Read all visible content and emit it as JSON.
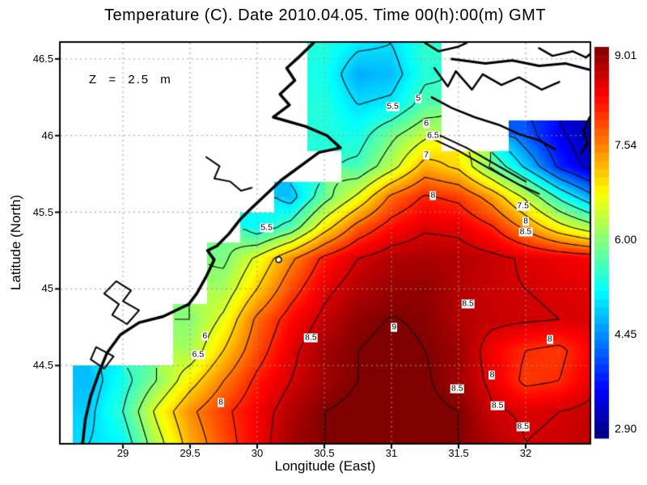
{
  "chart_data": {
    "type": "heatmap",
    "title": "Temperature (C). Date 2010.04.05. Time 00(h):00(m) GMT",
    "annotation": "Z = 2.5 m",
    "xlabel": "Longitude (East)",
    "ylabel": "Latitude (North)",
    "xlim": [
      28.536,
      32.476
    ],
    "ylim": [
      43.995,
      46.605
    ],
    "x_ticks": [
      29,
      29.5,
      30,
      30.5,
      31,
      31.5,
      32
    ],
    "x_tick_labels": [
      "29",
      "29.5",
      "30",
      "30.5",
      "31",
      "31.5",
      "32"
    ],
    "y_ticks": [
      44.5,
      45,
      45.5,
      46,
      46.5
    ],
    "y_tick_labels": [
      "44.5",
      "45",
      "45.5",
      "46",
      "46.5"
    ],
    "grid_on": true,
    "colormap": "jet",
    "colorbar": {
      "min": 2.9,
      "max": 9.01,
      "tick_values": [
        9.01,
        7.54,
        6.0,
        4.45,
        2.9
      ],
      "tick_labels": [
        "9.01",
        "7.54",
        "6.00",
        "4.45",
        "2.90"
      ]
    },
    "contour_levels": [
      3.5,
      4,
      4.5,
      5,
      5.5,
      6,
      6.5,
      7,
      7.5,
      8,
      8.5,
      9
    ],
    "contour_labels": [
      {
        "text": "5",
        "lon": 31.2,
        "lat": 46.24
      },
      {
        "text": "5.5",
        "lon": 31.01,
        "lat": 46.19
      },
      {
        "text": "6",
        "lon": 31.26,
        "lat": 46.08
      },
      {
        "text": "6.5",
        "lon": 31.31,
        "lat": 46.0
      },
      {
        "text": "7",
        "lon": 31.26,
        "lat": 45.87
      },
      {
        "text": "8",
        "lon": 31.31,
        "lat": 45.61
      },
      {
        "text": "7.5",
        "lon": 31.98,
        "lat": 45.54
      },
      {
        "text": "8",
        "lon": 32.0,
        "lat": 45.44
      },
      {
        "text": "8.5",
        "lon": 32.0,
        "lat": 45.37
      },
      {
        "text": "5.5",
        "lon": 30.07,
        "lat": 45.4
      },
      {
        "text": "6",
        "lon": 29.61,
        "lat": 44.69
      },
      {
        "text": "6.5",
        "lon": 29.56,
        "lat": 44.57
      },
      {
        "text": "8",
        "lon": 29.73,
        "lat": 44.26
      },
      {
        "text": "8.5",
        "lon": 30.4,
        "lat": 44.68
      },
      {
        "text": "9",
        "lon": 31.02,
        "lat": 44.75
      },
      {
        "text": "8.5",
        "lon": 31.57,
        "lat": 44.9
      },
      {
        "text": "8",
        "lon": 32.18,
        "lat": 44.67
      },
      {
        "text": "8",
        "lon": 31.75,
        "lat": 44.44
      },
      {
        "text": "8.5",
        "lon": 31.49,
        "lat": 44.35
      },
      {
        "text": "8.5",
        "lon": 31.79,
        "lat": 44.24
      },
      {
        "text": "8.5",
        "lon": 31.98,
        "lat": 44.1
      }
    ],
    "ring_marker": {
      "lon": 30.16,
      "lat": 45.19,
      "radius_px": 3.5
    },
    "temperature_grid": {
      "lon0": 28.5,
      "dlon": 0.25,
      "lat0": 46.6,
      "dlat": 0.2,
      "values": [
        [
          null,
          null,
          null,
          null,
          null,
          null,
          null,
          null,
          5.4,
          5.1,
          5.0,
          5.5,
          null,
          null,
          null,
          null,
          null
        ],
        [
          null,
          null,
          null,
          null,
          null,
          null,
          null,
          null,
          5.3,
          4.7,
          4.8,
          5.4,
          null,
          null,
          null,
          null,
          null
        ],
        [
          null,
          null,
          null,
          null,
          null,
          null,
          null,
          null,
          5.4,
          5.0,
          5.1,
          5.7,
          null,
          null,
          null,
          null,
          null
        ],
        [
          null,
          null,
          null,
          null,
          null,
          null,
          null,
          null,
          5.4,
          5.3,
          5.9,
          6.4,
          null,
          null,
          4.2,
          3.6,
          3.1
        ],
        [
          null,
          null,
          null,
          null,
          null,
          null,
          null,
          null,
          null,
          5.6,
          6.3,
          7.2,
          6.9,
          5.9,
          4.9,
          3.9,
          3.3
        ],
        [
          null,
          null,
          null,
          null,
          null,
          null,
          null,
          4.8,
          5.8,
          6.6,
          7.6,
          8.05,
          7.9,
          7.3,
          6.4,
          5.4,
          4.6
        ],
        [
          null,
          null,
          null,
          null,
          null,
          null,
          5.2,
          5.7,
          6.8,
          7.7,
          8.2,
          8.45,
          8.4,
          8.05,
          7.4,
          6.7,
          6.2
        ],
        [
          null,
          null,
          null,
          null,
          null,
          5.9,
          6.6,
          7.4,
          8.1,
          8.5,
          8.7,
          8.75,
          8.7,
          8.6,
          8.45,
          8.35,
          8.25
        ],
        [
          null,
          null,
          null,
          null,
          null,
          6.2,
          7.0,
          7.8,
          8.4,
          8.7,
          8.85,
          8.9,
          8.7,
          8.55,
          8.5,
          8.45,
          8.4
        ],
        [
          null,
          null,
          null,
          null,
          6.0,
          6.6,
          7.6,
          8.2,
          8.6,
          8.9,
          9.02,
          8.95,
          8.7,
          8.6,
          8.55,
          8.5,
          8.45
        ],
        [
          null,
          null,
          null,
          null,
          6.2,
          7.0,
          7.8,
          8.4,
          8.8,
          9.0,
          9.1,
          9.0,
          8.85,
          8.3,
          8.0,
          7.9,
          8.3
        ],
        [
          null,
          4.8,
          5.3,
          6.0,
          6.8,
          7.5,
          8.1,
          8.5,
          8.8,
          9.0,
          9.1,
          9.05,
          8.8,
          8.4,
          7.9,
          8.0,
          8.4
        ],
        [
          null,
          4.9,
          5.5,
          6.6,
          7.4,
          7.9,
          8.3,
          8.7,
          9.0,
          9.1,
          9.15,
          9.1,
          9.0,
          8.55,
          8.45,
          8.5,
          8.6
        ],
        [
          null,
          5.0,
          5.2,
          6.3,
          7.2,
          7.8,
          8.3,
          8.8,
          9.0,
          9.1,
          9.15,
          9.1,
          9.0,
          8.7,
          8.5,
          8.55,
          8.65
        ]
      ]
    },
    "coastlines": [
      {
        "name": "west-coast",
        "width": 3.5,
        "closed": false,
        "points": [
          [
            30.42,
            46.605
          ],
          [
            30.32,
            46.52
          ],
          [
            30.22,
            46.44
          ],
          [
            30.28,
            46.36
          ],
          [
            30.17,
            46.27
          ],
          [
            30.24,
            46.2
          ],
          [
            30.12,
            46.12
          ],
          [
            30.36,
            46.06
          ],
          [
            30.52,
            46.0
          ],
          [
            30.62,
            45.92
          ],
          [
            30.46,
            45.89
          ],
          [
            30.18,
            45.71
          ],
          [
            29.95,
            45.52
          ],
          [
            29.87,
            45.45
          ],
          [
            29.79,
            45.36
          ],
          [
            29.7,
            45.28
          ],
          [
            29.63,
            45.25
          ],
          [
            29.68,
            45.19
          ],
          [
            29.62,
            45.08
          ],
          [
            29.55,
            44.97
          ],
          [
            29.49,
            44.9
          ],
          [
            29.3,
            44.82
          ],
          [
            29.12,
            44.78
          ],
          [
            28.98,
            44.7
          ],
          [
            28.88,
            44.58
          ],
          [
            28.82,
            44.45
          ],
          [
            28.76,
            44.3
          ],
          [
            28.72,
            44.15
          ],
          [
            28.7,
            43.995
          ]
        ]
      },
      {
        "name": "danube-lagoon-1",
        "width": 2,
        "closed": true,
        "points": [
          [
            28.95,
            45.05
          ],
          [
            29.06,
            44.99
          ],
          [
            29.0,
            44.92
          ],
          [
            29.12,
            44.86
          ],
          [
            29.03,
            44.77
          ],
          [
            28.92,
            44.83
          ],
          [
            28.97,
            44.9
          ],
          [
            28.86,
            44.97
          ]
        ]
      },
      {
        "name": "danube-lagoon-2",
        "width": 2,
        "closed": true,
        "points": [
          [
            28.8,
            44.62
          ],
          [
            28.93,
            44.56
          ],
          [
            28.86,
            44.48
          ],
          [
            28.76,
            44.54
          ]
        ]
      },
      {
        "name": "dniester-liman",
        "width": 2,
        "closed": false,
        "points": [
          [
            29.62,
            45.86
          ],
          [
            29.72,
            45.8
          ],
          [
            29.68,
            45.72
          ],
          [
            29.8,
            45.7
          ],
          [
            29.88,
            45.64
          ],
          [
            29.96,
            45.66
          ]
        ]
      },
      {
        "name": "topright-shore-zigzag",
        "width": 2.5,
        "closed": false,
        "points": [
          [
            31.25,
            46.605
          ],
          [
            31.35,
            46.55
          ],
          [
            31.5,
            46.58
          ],
          [
            31.56,
            46.605
          ]
        ]
      },
      {
        "name": "topright-shore",
        "width": 3,
        "closed": false,
        "points": [
          [
            31.45,
            46.5
          ],
          [
            31.7,
            46.47
          ],
          [
            31.9,
            46.49
          ],
          [
            32.1,
            46.455
          ],
          [
            32.3,
            46.47
          ],
          [
            32.476,
            46.43
          ]
        ]
      },
      {
        "name": "topright-corner",
        "width": 2.5,
        "closed": false,
        "points": [
          [
            32.1,
            46.57
          ],
          [
            32.2,
            46.52
          ],
          [
            32.35,
            46.55
          ],
          [
            32.45,
            46.51
          ],
          [
            32.476,
            46.53
          ]
        ]
      },
      {
        "name": "dnieper-liman",
        "width": 2.5,
        "closed": false,
        "points": [
          [
            31.32,
            46.44
          ],
          [
            31.42,
            46.32
          ],
          [
            31.48,
            46.42
          ],
          [
            31.6,
            46.3
          ],
          [
            31.68,
            46.4
          ],
          [
            31.82,
            46.33
          ],
          [
            31.95,
            46.38
          ],
          [
            32.12,
            46.3
          ],
          [
            32.25,
            46.35
          ]
        ]
      },
      {
        "name": "karkinit-shore",
        "width": 2.5,
        "closed": false,
        "points": [
          [
            31.3,
            46.25
          ],
          [
            31.45,
            46.18
          ],
          [
            31.62,
            46.12
          ],
          [
            31.8,
            46.07
          ],
          [
            31.95,
            46.01
          ],
          [
            32.1,
            45.97
          ],
          [
            32.22,
            45.91
          ]
        ]
      },
      {
        "name": "spit-island-1",
        "width": 2,
        "closed": false,
        "points": [
          [
            31.28,
            45.99
          ],
          [
            31.5,
            45.9
          ],
          [
            31.72,
            45.79
          ],
          [
            31.95,
            45.68
          ],
          [
            32.1,
            45.62
          ]
        ]
      },
      {
        "name": "spit-island-2",
        "width": 2,
        "closed": false,
        "points": [
          [
            31.34,
            46.01
          ],
          [
            31.56,
            45.92
          ],
          [
            31.78,
            45.81
          ],
          [
            32.0,
            45.7
          ]
        ]
      },
      {
        "name": "right-edge-coast",
        "width": 2.5,
        "closed": false,
        "points": [
          [
            32.476,
            46.12
          ],
          [
            32.43,
            46.03
          ],
          [
            32.46,
            45.95
          ],
          [
            32.41,
            45.88
          ]
        ]
      }
    ],
    "colors": {
      "land": "#ffffff",
      "coast": "#000000",
      "contour": "#000000",
      "gridline": "#999999",
      "frame": "#000000",
      "label_bg": "#ffffff",
      "text": "#000000"
    }
  }
}
